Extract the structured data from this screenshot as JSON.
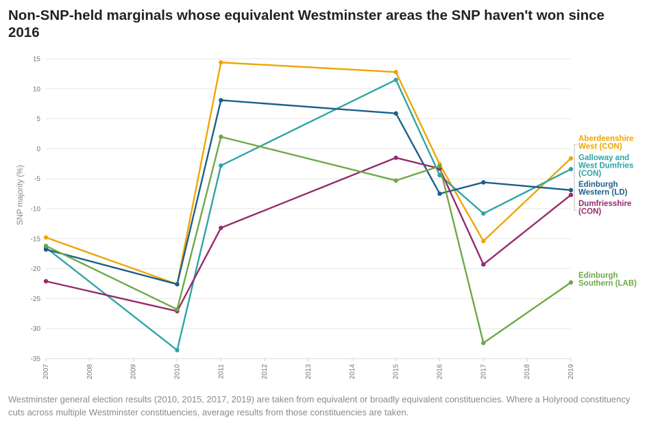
{
  "title": "Non-SNP-held marginals whose equivalent Westminster areas the SNP haven't won since 2016",
  "footnote": "Westminster general election results (2010, 2015, 2017, 2019) are taken from equivalent or broadly equivalent constituencies. Where a Holyrood constituency cuts across multiple Westminster constituencies, average results from those constituencies are taken.",
  "chart_data": {
    "type": "line",
    "title": "Non-SNP-held marginals whose equivalent Westminster areas the SNP haven't won since 2016",
    "xlabel": "",
    "ylabel": "SNP majority (%)",
    "x_ticks": [
      "2007",
      "2008",
      "2009",
      "2010",
      "2011",
      "2012",
      "2013",
      "2014",
      "2015",
      "2016",
      "2017",
      "2018",
      "2019"
    ],
    "y_ticks": [
      15,
      10,
      5,
      0,
      -5,
      -10,
      -15,
      -20,
      -25,
      -30,
      -35
    ],
    "xlim": [
      2007,
      2019
    ],
    "ylim": [
      -35,
      15
    ],
    "grid": "horizontal",
    "legend": "direct labels at right",
    "x": [
      2007,
      2010,
      2011,
      2015,
      2016,
      2017,
      2019
    ],
    "series": [
      {
        "name": "Aberdeenshire West (CON)",
        "color": "#f0a500",
        "label_lines": [
          "Aberdeenshire",
          "West (CON)"
        ],
        "values": [
          -14.8,
          -22.6,
          14.4,
          12.8,
          -2.6,
          -15.4,
          -1.6
        ]
      },
      {
        "name": "Galloway and West Dumfries (CON)",
        "color": "#2fa4a4",
        "label_lines": [
          "Galloway and",
          "West Dumfries",
          "(CON)"
        ],
        "values": [
          -16.5,
          -33.6,
          -2.8,
          11.5,
          -4.4,
          -10.8,
          -3.4
        ]
      },
      {
        "name": "Edinburgh Western (LD)",
        "color": "#1c5f8a",
        "label_lines": [
          "Edinburgh",
          "Western (LD)"
        ],
        "values": [
          -16.8,
          -22.6,
          8.1,
          5.9,
          -7.5,
          -5.6,
          -6.9
        ]
      },
      {
        "name": "Dumfriesshire (CON)",
        "color": "#952b6b",
        "label_lines": [
          "Dumfriesshire",
          "(CON)"
        ],
        "values": [
          -22.1,
          -27.1,
          -13.2,
          -1.5,
          -3.3,
          -19.3,
          -7.7
        ]
      },
      {
        "name": "Edinburgh Southern (LAB)",
        "color": "#6ea844",
        "label_lines": [
          "Edinburgh",
          "Southern (LAB)"
        ],
        "values": [
          -16.2,
          -26.8,
          2.0,
          -5.3,
          -2.9,
          -32.4,
          -22.3
        ]
      }
    ]
  }
}
